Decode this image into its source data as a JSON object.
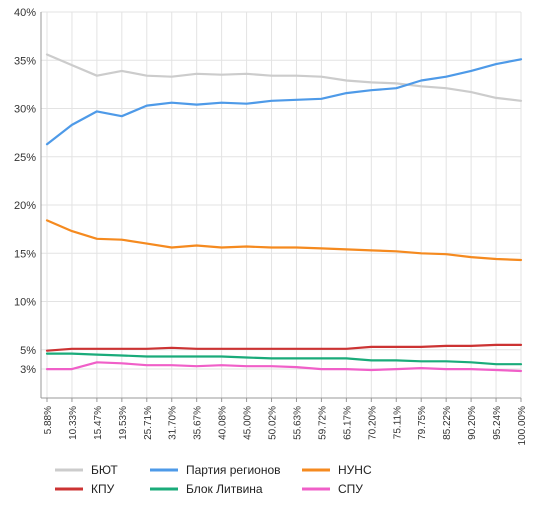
{
  "chart_data": {
    "type": "line",
    "title": "",
    "xlabel": "",
    "ylabel": "",
    "ylim": [
      0,
      40
    ],
    "y_ticks": [
      {
        "value": 40,
        "label": "40%"
      },
      {
        "value": 35,
        "label": "35%"
      },
      {
        "value": 30,
        "label": "30%"
      },
      {
        "value": 25,
        "label": "25%"
      },
      {
        "value": 20,
        "label": "20%"
      },
      {
        "value": 15,
        "label": "15%"
      },
      {
        "value": 10,
        "label": "10%"
      },
      {
        "value": 5,
        "label": "5%"
      },
      {
        "value": 3,
        "label": "3%"
      }
    ],
    "grid": true,
    "legend_position": "bottom",
    "x": [
      "5.88%",
      "10.33%",
      "15.47%",
      "19.53%",
      "25.71%",
      "31.70%",
      "35.67%",
      "40.08%",
      "45.00%",
      "50.02%",
      "55.63%",
      "59.72%",
      "65.17%",
      "70.20%",
      "75.11%",
      "79.75%",
      "85.22%",
      "90.20%",
      "95.24%",
      "100.00%"
    ],
    "series": [
      {
        "name": "БЮТ",
        "color": "#cccccc",
        "values": [
          35.6,
          34.5,
          33.4,
          33.9,
          33.4,
          33.3,
          33.6,
          33.5,
          33.6,
          33.4,
          33.4,
          33.3,
          32.9,
          32.7,
          32.6,
          32.3,
          32.1,
          31.7,
          31.1,
          30.8
        ]
      },
      {
        "name": "Партия регионов",
        "color": "#4e9ae8",
        "values": [
          26.3,
          28.3,
          29.7,
          29.2,
          30.3,
          30.6,
          30.4,
          30.6,
          30.5,
          30.8,
          30.9,
          31.0,
          31.6,
          31.9,
          32.1,
          32.9,
          33.3,
          33.9,
          34.6,
          35.1
        ]
      },
      {
        "name": "НУНС",
        "color": "#f58a1f",
        "values": [
          18.4,
          17.3,
          16.5,
          16.4,
          16.0,
          15.6,
          15.8,
          15.6,
          15.7,
          15.6,
          15.6,
          15.5,
          15.4,
          15.3,
          15.2,
          15.0,
          14.9,
          14.6,
          14.4,
          14.3
        ]
      },
      {
        "name": "КПУ",
        "color": "#cc3333",
        "values": [
          4.9,
          5.1,
          5.1,
          5.1,
          5.1,
          5.2,
          5.1,
          5.1,
          5.1,
          5.1,
          5.1,
          5.1,
          5.1,
          5.3,
          5.3,
          5.3,
          5.4,
          5.4,
          5.5,
          5.5
        ]
      },
      {
        "name": "Блок Литвина",
        "color": "#1aab7a",
        "values": [
          4.6,
          4.6,
          4.5,
          4.4,
          4.3,
          4.3,
          4.3,
          4.3,
          4.2,
          4.1,
          4.1,
          4.1,
          4.1,
          3.9,
          3.9,
          3.8,
          3.8,
          3.7,
          3.5,
          3.5
        ]
      },
      {
        "name": "СПУ",
        "color": "#f05fc8",
        "values": [
          3.0,
          3.0,
          3.7,
          3.6,
          3.4,
          3.4,
          3.3,
          3.4,
          3.3,
          3.3,
          3.2,
          3.0,
          3.0,
          2.9,
          3.0,
          3.1,
          3.0,
          3.0,
          2.9,
          2.8
        ]
      }
    ]
  }
}
